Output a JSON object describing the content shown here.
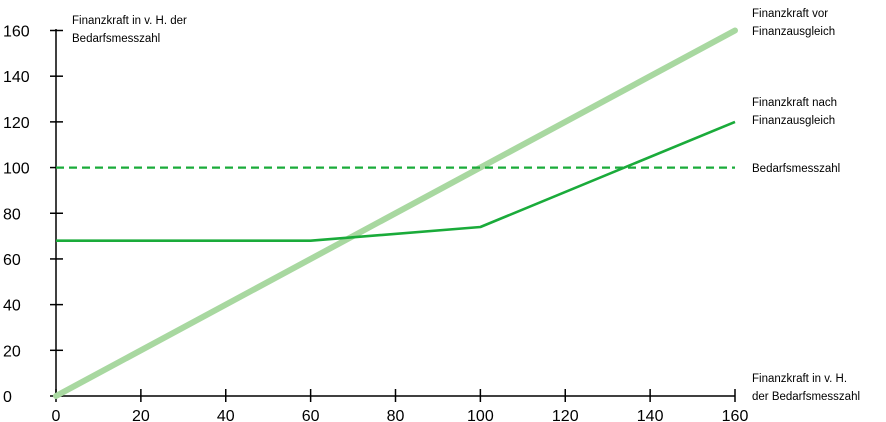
{
  "chart_data": {
    "type": "line",
    "ylabel": [
      "Finanzkraft in v. H. der",
      "Bedarfsmesszahl"
    ],
    "xlabel": [
      "Finanzkraft in v. H.",
      "der Bedarfsmesszahl"
    ],
    "xlim": [
      0,
      160
    ],
    "ylim": [
      0,
      160
    ],
    "x_ticks": [
      "0",
      "20",
      "40",
      "60",
      "80",
      "100",
      "120",
      "140",
      "160"
    ],
    "y_ticks": [
      "0",
      "20",
      "40",
      "60",
      "80",
      "100",
      "120",
      "140",
      "160"
    ],
    "grid": false,
    "series": [
      {
        "name": [
          "Finanzkraft vor",
          "Finanzausgleich"
        ],
        "style": "thick",
        "color": "#a8d8a0",
        "x": [
          0,
          160
        ],
        "y": [
          0,
          160
        ]
      },
      {
        "name": [
          "Finanzkraft nach",
          "Finanzausgleich"
        ],
        "style": "solid",
        "color": "#1aab3a",
        "x": [
          0,
          60,
          100,
          160
        ],
        "y": [
          68,
          68,
          74,
          120
        ]
      },
      {
        "name": [
          "Bedarfsmesszahl"
        ],
        "style": "dashed",
        "color": "#1aab3a",
        "x": [
          0,
          160
        ],
        "y": [
          100,
          100
        ]
      }
    ]
  }
}
